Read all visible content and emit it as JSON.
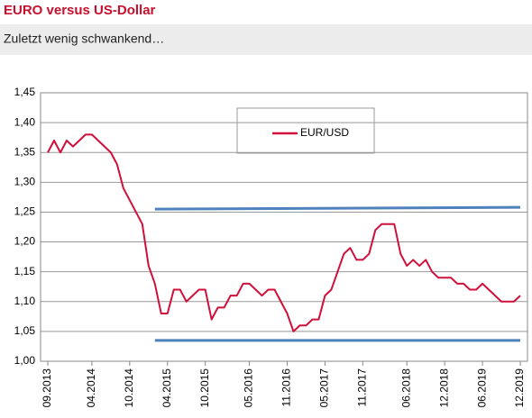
{
  "chart_data": {
    "type": "line",
    "title": "EURO versus US-Dollar",
    "subtitle": "Zuletzt wenig schwankend…",
    "x": [
      "09.2013",
      "10.2013",
      "11.2013",
      "12.2013",
      "01.2014",
      "02.2014",
      "03.2014",
      "04.2014",
      "05.2014",
      "06.2014",
      "07.2014",
      "08.2014",
      "09.2014",
      "10.2014",
      "11.2014",
      "12.2014",
      "01.2015",
      "02.2015",
      "03.2015",
      "04.2015",
      "05.2015",
      "06.2015",
      "07.2015",
      "08.2015",
      "09.2015",
      "10.2015",
      "11.2015",
      "12.2015",
      "01.2016",
      "02.2016",
      "03.2016",
      "04.2016",
      "05.2016",
      "06.2016",
      "07.2016",
      "08.2016",
      "09.2016",
      "10.2016",
      "11.2016",
      "12.2016",
      "01.2017",
      "02.2017",
      "03.2017",
      "04.2017",
      "05.2017",
      "06.2017",
      "07.2017",
      "08.2017",
      "09.2017",
      "10.2017",
      "11.2017",
      "12.2017",
      "01.2018",
      "02.2018",
      "03.2018",
      "04.2018",
      "05.2018",
      "06.2018",
      "07.2018",
      "08.2018",
      "09.2018",
      "10.2018",
      "11.2018",
      "12.2018",
      "01.2019",
      "02.2019",
      "03.2019",
      "04.2019",
      "05.2019",
      "06.2019",
      "07.2019",
      "08.2019",
      "09.2019",
      "10.2019",
      "11.2019",
      "12.2019"
    ],
    "series": [
      {
        "name": "EUR/USD",
        "color": "#d0103a",
        "values": [
          1.35,
          1.37,
          1.35,
          1.37,
          1.36,
          1.37,
          1.38,
          1.38,
          1.37,
          1.36,
          1.35,
          1.33,
          1.29,
          1.27,
          1.25,
          1.23,
          1.16,
          1.13,
          1.08,
          1.08,
          1.12,
          1.12,
          1.1,
          1.11,
          1.12,
          1.12,
          1.07,
          1.09,
          1.09,
          1.11,
          1.11,
          1.13,
          1.13,
          1.12,
          1.11,
          1.12,
          1.12,
          1.1,
          1.08,
          1.05,
          1.06,
          1.06,
          1.07,
          1.07,
          1.11,
          1.12,
          1.15,
          1.18,
          1.19,
          1.17,
          1.17,
          1.18,
          1.22,
          1.23,
          1.23,
          1.23,
          1.18,
          1.16,
          1.17,
          1.16,
          1.17,
          1.15,
          1.14,
          1.14,
          1.14,
          1.13,
          1.13,
          1.12,
          1.12,
          1.13,
          1.12,
          1.11,
          1.1,
          1.1,
          1.1,
          1.11
        ]
      }
    ],
    "reference_lines": [
      {
        "color": "#4f81bd",
        "values": [
          1.255,
          1.258
        ],
        "x": [
          "02.2015",
          "12.2019"
        ]
      },
      {
        "color": "#4f81bd",
        "values": [
          1.035,
          1.035
        ],
        "x": [
          "02.2015",
          "12.2019"
        ]
      }
    ],
    "ylim": [
      1.0,
      1.45
    ],
    "yticks": [
      {
        "value": 1.0,
        "label": "1,00"
      },
      {
        "value": 1.05,
        "label": "1,05"
      },
      {
        "value": 1.1,
        "label": "1,10"
      },
      {
        "value": 1.15,
        "label": "1,15"
      },
      {
        "value": 1.2,
        "label": "1,20"
      },
      {
        "value": 1.25,
        "label": "1,25"
      },
      {
        "value": 1.3,
        "label": "1,30"
      },
      {
        "value": 1.35,
        "label": "1,35"
      },
      {
        "value": 1.4,
        "label": "1,40"
      },
      {
        "value": 1.45,
        "label": "1,45"
      }
    ],
    "xticks": [
      "09.2013",
      "04.2014",
      "10.2014",
      "04.2015",
      "10.2015",
      "05.2016",
      "11.2016",
      "05.2017",
      "11.2017",
      "06.2018",
      "12.2018",
      "06.2019",
      "12.2019"
    ],
    "grid": true
  }
}
